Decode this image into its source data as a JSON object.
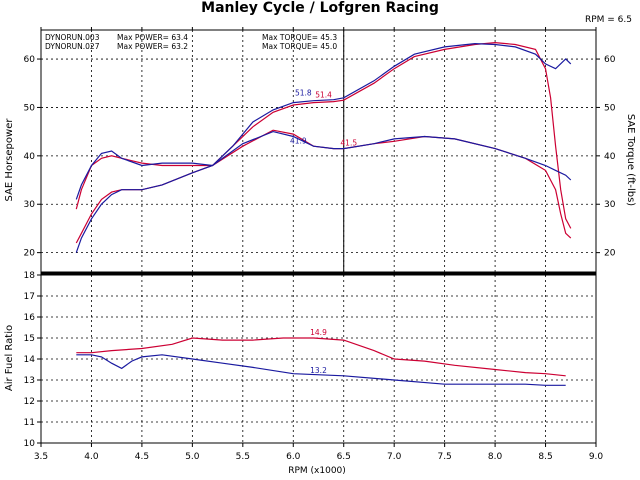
{
  "title": "Manley Cycle / Lofgren Racing",
  "rpm_note": "RPM = 6.5",
  "colors": {
    "run1": "#cc0033",
    "run2": "#1a1aa0"
  },
  "legend": {
    "run1": {
      "name": "DYNORUN.003",
      "power": "Max POWER= 63.4",
      "torque": "Max TORQUE= 45.3"
    },
    "run2": {
      "name": "DYNORUN.027",
      "power": "Max POWER= 63.2",
      "torque": "Max TORQUE= 45.0"
    }
  },
  "chart_data": [
    {
      "type": "line",
      "ylabel": "SAE Horsepower",
      "y2label": "SAE Torque (ft-lbs)",
      "xlim": [
        3.5,
        9.0
      ],
      "ylim": [
        16,
        66
      ],
      "yticks": [
        20,
        30,
        40,
        50,
        60
      ],
      "cursor_x": 6.5,
      "annotations": [
        {
          "x": 6.1,
          "y": 51.8,
          "text": "51.8",
          "series": "DYNORUN.027"
        },
        {
          "x": 6.3,
          "y": 51.4,
          "text": "51.4",
          "series": "DYNORUN.003"
        },
        {
          "x": 6.05,
          "y": 41.9,
          "text": "41.9",
          "series": "DYNORUN.027"
        },
        {
          "x": 6.55,
          "y": 41.5,
          "text": "41.5",
          "series": "DYNORUN.003"
        }
      ],
      "series": [
        {
          "name": "DYNORUN.003",
          "kind": "power",
          "x": [
            3.85,
            3.9,
            4.0,
            4.1,
            4.2,
            4.3,
            4.5,
            4.7,
            5.0,
            5.2,
            5.4,
            5.6,
            5.8,
            6.0,
            6.2,
            6.4,
            6.5,
            6.8,
            7.0,
            7.2,
            7.5,
            7.8,
            8.0,
            8.2,
            8.4,
            8.5,
            8.55,
            8.6,
            8.65,
            8.7,
            8.75
          ],
          "y": [
            22,
            24,
            28,
            31,
            32.5,
            33,
            33,
            34,
            36.5,
            38,
            42,
            46,
            49,
            50.5,
            51,
            51.2,
            51.5,
            55,
            58,
            60.5,
            62,
            63,
            63.4,
            63,
            62,
            58,
            52,
            42,
            33,
            27,
            25
          ]
        },
        {
          "name": "DYNORUN.003",
          "kind": "torque",
          "x": [
            3.85,
            3.9,
            4.0,
            4.1,
            4.2,
            4.3,
            4.5,
            4.7,
            5.0,
            5.2,
            5.5,
            5.8,
            6.0,
            6.2,
            6.4,
            6.5,
            6.8,
            7.0,
            7.3,
            7.6,
            8.0,
            8.3,
            8.5,
            8.6,
            8.65,
            8.7,
            8.75
          ],
          "y": [
            29,
            33,
            38,
            39.5,
            40,
            39.5,
            38.5,
            38,
            38,
            38,
            42,
            45.3,
            44.5,
            42,
            41.5,
            41.5,
            42.5,
            43,
            44,
            43.5,
            41.5,
            39.5,
            37,
            33,
            28,
            24,
            23
          ]
        },
        {
          "name": "DYNORUN.027",
          "kind": "power",
          "x": [
            3.85,
            3.9,
            4.0,
            4.1,
            4.2,
            4.3,
            4.5,
            4.7,
            5.0,
            5.2,
            5.4,
            5.6,
            5.8,
            6.0,
            6.2,
            6.4,
            6.5,
            6.8,
            7.0,
            7.2,
            7.5,
            7.8,
            8.0,
            8.2,
            8.4,
            8.5,
            8.6,
            8.7,
            8.75
          ],
          "y": [
            20,
            23,
            27,
            30,
            32,
            33,
            33,
            34,
            36.5,
            38,
            42,
            47,
            49.5,
            51,
            51.4,
            51.6,
            52,
            55.5,
            58.5,
            61,
            62.5,
            63.2,
            63,
            62.5,
            61,
            59,
            58,
            60,
            59
          ]
        },
        {
          "name": "DYNORUN.027",
          "kind": "torque",
          "x": [
            3.85,
            3.9,
            4.0,
            4.1,
            4.2,
            4.3,
            4.5,
            4.7,
            5.0,
            5.2,
            5.5,
            5.8,
            6.0,
            6.2,
            6.4,
            6.5,
            6.8,
            7.0,
            7.3,
            7.6,
            8.0,
            8.3,
            8.5,
            8.6,
            8.7,
            8.75
          ],
          "y": [
            31,
            34,
            38,
            40.5,
            41,
            39.5,
            38,
            38.5,
            38.5,
            38,
            42.5,
            45,
            44,
            42,
            41.5,
            41.5,
            42.5,
            43.5,
            44,
            43.5,
            41.5,
            39.5,
            38,
            37,
            36,
            35
          ]
        }
      ]
    },
    {
      "type": "line",
      "ylabel": "Air Fuel Ratio",
      "xlabel": "RPM (x1000)",
      "xlim": [
        3.5,
        9.0
      ],
      "xticks": [
        3.5,
        4.0,
        4.5,
        5.0,
        5.5,
        6.0,
        6.5,
        7.0,
        7.5,
        8.0,
        8.5,
        9.0
      ],
      "ylim": [
        10,
        18
      ],
      "yticks": [
        10,
        11,
        12,
        13,
        14,
        15,
        16,
        17,
        18
      ],
      "annotations": [
        {
          "x": 6.25,
          "y": 15.0,
          "text": "14.9",
          "series": "DYNORUN.003"
        },
        {
          "x": 6.25,
          "y": 13.2,
          "text": "13.2",
          "series": "DYNORUN.027"
        }
      ],
      "series": [
        {
          "name": "DYNORUN.003",
          "x": [
            3.85,
            4.0,
            4.2,
            4.5,
            4.8,
            5.0,
            5.3,
            5.6,
            5.9,
            6.2,
            6.5,
            6.8,
            7.0,
            7.3,
            7.6,
            8.0,
            8.3,
            8.5,
            8.7
          ],
          "y": [
            14.3,
            14.3,
            14.4,
            14.5,
            14.7,
            15.0,
            14.9,
            14.9,
            15.0,
            15.0,
            14.9,
            14.4,
            14.0,
            13.9,
            13.7,
            13.5,
            13.35,
            13.3,
            13.2
          ]
        },
        {
          "name": "DYNORUN.027",
          "x": [
            3.85,
            4.0,
            4.1,
            4.2,
            4.3,
            4.4,
            4.5,
            4.7,
            5.0,
            5.3,
            5.6,
            6.0,
            6.5,
            7.0,
            7.5,
            8.0,
            8.3,
            8.5,
            8.7
          ],
          "y": [
            14.2,
            14.2,
            14.1,
            13.8,
            13.55,
            13.9,
            14.1,
            14.2,
            14.0,
            13.8,
            13.6,
            13.3,
            13.2,
            13.0,
            12.8,
            12.8,
            12.8,
            12.75,
            12.75
          ]
        }
      ]
    }
  ]
}
